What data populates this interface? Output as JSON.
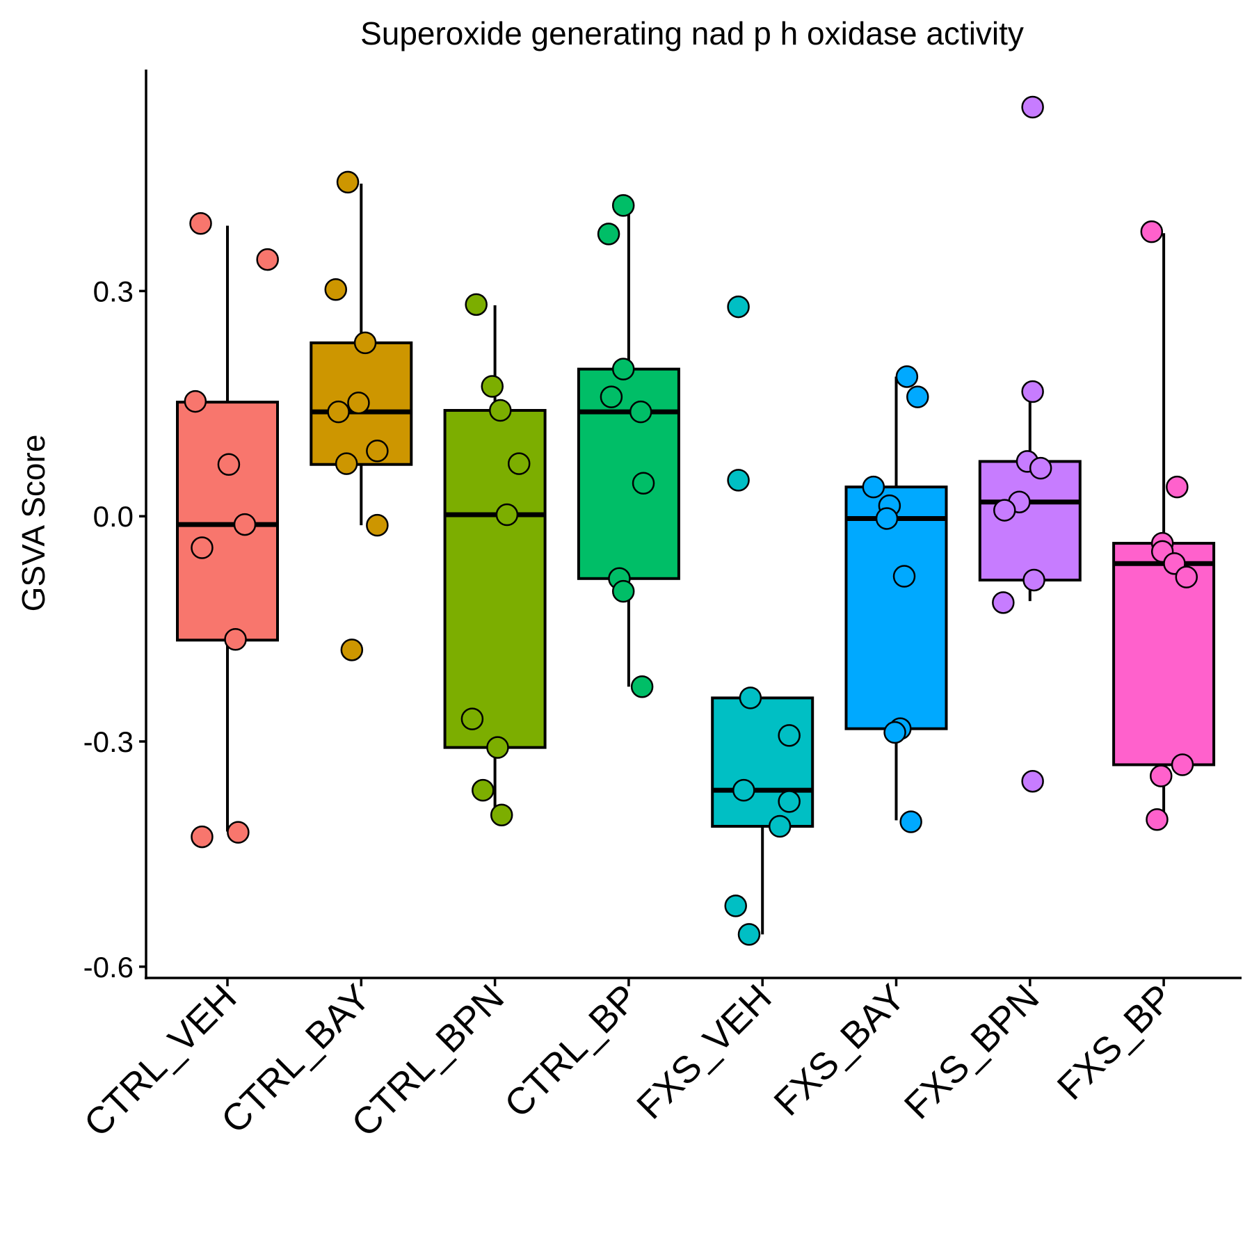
{
  "chart_data": {
    "type": "box",
    "title": "Superoxide generating nad p h oxidase activity",
    "xlabel": "",
    "ylabel": "GSVA Score",
    "ylim": [
      -0.615,
      0.595
    ],
    "yticks": [
      0.3,
      0.0,
      -0.3,
      -0.6
    ],
    "ytick_labels": [
      "0.3",
      "0.0",
      "-0.3",
      "-0.6"
    ],
    "categories": [
      "CTRL_VEH",
      "CTRL_BAY",
      "CTRL_BPN",
      "CTRL_BP",
      "FXS_VEH",
      "FXS_BAY",
      "FXS_BPN",
      "FXS_BP"
    ],
    "colors": [
      "#F8766D",
      "#CD9600",
      "#7CAE00",
      "#00BE67",
      "#00BFC4",
      "#00A9FF",
      "#C77CFF",
      "#FF61CC"
    ],
    "groups": [
      {
        "name": "CTRL_VEH",
        "box": {
          "q1": -0.165,
          "median": -0.011,
          "q3": 0.152,
          "whisker_low": -0.42,
          "whisker_high": 0.387
        },
        "points": [
          {
            "dx": -0.2,
            "y": 0.39
          },
          {
            "dx": 0.3,
            "y": 0.342
          },
          {
            "dx": -0.24,
            "y": 0.153
          },
          {
            "dx": 0.01,
            "y": 0.069
          },
          {
            "dx": 0.13,
            "y": -0.011
          },
          {
            "dx": -0.19,
            "y": -0.042
          },
          {
            "dx": 0.06,
            "y": -0.164
          },
          {
            "dx": 0.08,
            "y": -0.421
          },
          {
            "dx": -0.19,
            "y": -0.427
          }
        ]
      },
      {
        "name": "CTRL_BAY",
        "box": {
          "q1": 0.069,
          "median": 0.139,
          "q3": 0.231,
          "whisker_low": -0.012,
          "whisker_high": 0.443
        },
        "points": [
          {
            "dx": -0.1,
            "y": 0.445
          },
          {
            "dx": -0.19,
            "y": 0.302
          },
          {
            "dx": 0.03,
            "y": 0.231
          },
          {
            "dx": -0.02,
            "y": 0.151
          },
          {
            "dx": -0.17,
            "y": 0.139
          },
          {
            "dx": 0.12,
            "y": 0.087
          },
          {
            "dx": -0.11,
            "y": 0.07
          },
          {
            "dx": 0.12,
            "y": -0.012
          },
          {
            "dx": -0.07,
            "y": -0.178
          }
        ]
      },
      {
        "name": "CTRL_BPN",
        "box": {
          "q1": -0.308,
          "median": 0.002,
          "q3": 0.141,
          "whisker_low": -0.398,
          "whisker_high": 0.281
        },
        "points": [
          {
            "dx": -0.14,
            "y": 0.282
          },
          {
            "dx": -0.02,
            "y": 0.173
          },
          {
            "dx": 0.04,
            "y": 0.141
          },
          {
            "dx": 0.18,
            "y": 0.07
          },
          {
            "dx": 0.09,
            "y": 0.002
          },
          {
            "dx": -0.17,
            "y": -0.27
          },
          {
            "dx": 0.02,
            "y": -0.308
          },
          {
            "dx": -0.09,
            "y": -0.365
          },
          {
            "dx": 0.05,
            "y": -0.398
          }
        ]
      },
      {
        "name": "CTRL_BP",
        "box": {
          "q1": -0.083,
          "median": 0.139,
          "q3": 0.196,
          "whisker_low": -0.227,
          "whisker_high": 0.413
        },
        "points": [
          {
            "dx": -0.04,
            "y": 0.414
          },
          {
            "dx": -0.15,
            "y": 0.376
          },
          {
            "dx": -0.04,
            "y": 0.196
          },
          {
            "dx": -0.13,
            "y": 0.159
          },
          {
            "dx": 0.09,
            "y": 0.139
          },
          {
            "dx": 0.11,
            "y": 0.044
          },
          {
            "dx": -0.07,
            "y": -0.083
          },
          {
            "dx": -0.04,
            "y": -0.1
          },
          {
            "dx": 0.1,
            "y": -0.227
          }
        ]
      },
      {
        "name": "FXS_VEH",
        "box": {
          "q1": -0.413,
          "median": -0.365,
          "q3": -0.242,
          "whisker_low": -0.557,
          "whisker_high": -0.242
        },
        "points": [
          {
            "dx": -0.18,
            "y": 0.279
          },
          {
            "dx": -0.18,
            "y": 0.048
          },
          {
            "dx": -0.09,
            "y": -0.242
          },
          {
            "dx": 0.2,
            "y": -0.292
          },
          {
            "dx": -0.14,
            "y": -0.365
          },
          {
            "dx": 0.2,
            "y": -0.38
          },
          {
            "dx": 0.13,
            "y": -0.413
          },
          {
            "dx": -0.2,
            "y": -0.519
          },
          {
            "dx": -0.1,
            "y": -0.557
          }
        ]
      },
      {
        "name": "FXS_BAY",
        "box": {
          "q1": -0.283,
          "median": -0.003,
          "q3": 0.039,
          "whisker_low": -0.405,
          "whisker_high": 0.186
        },
        "points": [
          {
            "dx": 0.08,
            "y": 0.186
          },
          {
            "dx": 0.16,
            "y": 0.159
          },
          {
            "dx": -0.17,
            "y": 0.039
          },
          {
            "dx": -0.05,
            "y": 0.014
          },
          {
            "dx": -0.07,
            "y": -0.003
          },
          {
            "dx": 0.06,
            "y": -0.08
          },
          {
            "dx": 0.03,
            "y": -0.283
          },
          {
            "dx": -0.01,
            "y": -0.288
          },
          {
            "dx": 0.11,
            "y": -0.407
          }
        ]
      },
      {
        "name": "FXS_BPN",
        "box": {
          "q1": -0.085,
          "median": 0.019,
          "q3": 0.073,
          "whisker_low": -0.113,
          "whisker_high": 0.165
        },
        "points": [
          {
            "dx": 0.02,
            "y": 0.545
          },
          {
            "dx": 0.02,
            "y": 0.166
          },
          {
            "dx": -0.02,
            "y": 0.073
          },
          {
            "dx": 0.08,
            "y": 0.064
          },
          {
            "dx": -0.08,
            "y": 0.019
          },
          {
            "dx": -0.19,
            "y": 0.008
          },
          {
            "dx": 0.03,
            "y": -0.085
          },
          {
            "dx": -0.2,
            "y": -0.115
          },
          {
            "dx": 0.02,
            "y": -0.353
          }
        ]
      },
      {
        "name": "FXS_BP",
        "box": {
          "q1": -0.331,
          "median": -0.063,
          "q3": -0.036,
          "whisker_low": -0.396,
          "whisker_high": 0.377
        },
        "points": [
          {
            "dx": -0.09,
            "y": 0.379
          },
          {
            "dx": 0.1,
            "y": 0.039
          },
          {
            "dx": -0.01,
            "y": -0.036
          },
          {
            "dx": -0.01,
            "y": -0.047
          },
          {
            "dx": 0.08,
            "y": -0.063
          },
          {
            "dx": 0.17,
            "y": -0.081
          },
          {
            "dx": 0.14,
            "y": -0.331
          },
          {
            "dx": -0.02,
            "y": -0.346
          },
          {
            "dx": -0.05,
            "y": -0.404
          }
        ]
      }
    ]
  }
}
